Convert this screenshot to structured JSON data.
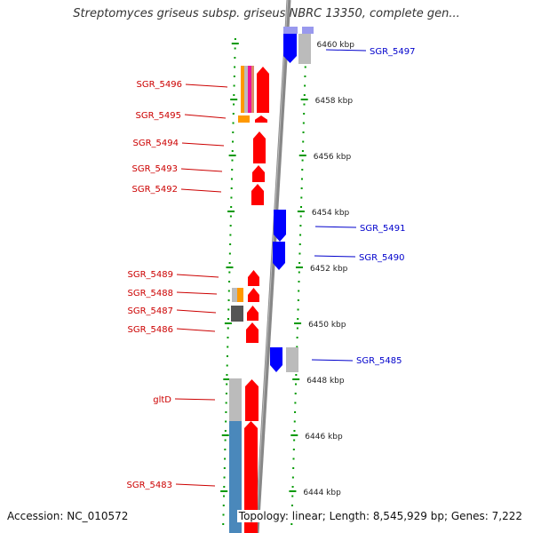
{
  "title": "Streptomyces griseus subsp. griseus NBRC 13350, complete gen...",
  "footer": {
    "accession_label": "Accession:",
    "accession": "NC_010572",
    "topology_label": "Topology:",
    "topology": "linear",
    "length_label": "Length:",
    "length": "8,545,929 bp",
    "genes_label": "Genes:",
    "genes": "7,222"
  },
  "colors": {
    "forward_strand": "#ff0000",
    "reverse_strand": "#0000ff",
    "forward_label": "#cc0000",
    "reverse_label": "#0000cc",
    "scale_ticks": "#009900",
    "backbone": "#888888",
    "gray_feature": "#bbbbbb",
    "dark_gray_feature": "#555555",
    "orange_feature": "#ff9900",
    "magenta_feature": "#ee1199",
    "steel_blue_feature": "#4a88bb",
    "lavender_feature": "#9999ee"
  },
  "scale": {
    "unit": "kbp",
    "labels": [
      "6460 kbp",
      "6458 kbp",
      "6456 kbp",
      "6454 kbp",
      "6452 kbp",
      "6450 kbp",
      "6448 kbp",
      "6446 kbp",
      "6444 kbp"
    ]
  },
  "features": {
    "forward": [
      {
        "name": "SGR_5496"
      },
      {
        "name": "SGR_5495"
      },
      {
        "name": "SGR_5494"
      },
      {
        "name": "SGR_5493"
      },
      {
        "name": "SGR_5492"
      },
      {
        "name": "SGR_5489"
      },
      {
        "name": "SGR_5488"
      },
      {
        "name": "SGR_5487"
      },
      {
        "name": "SGR_5486"
      },
      {
        "name": "gltD"
      },
      {
        "name": "SGR_5483"
      }
    ],
    "reverse": [
      {
        "name": "SGR_5497"
      },
      {
        "name": "SGR_5491"
      },
      {
        "name": "SGR_5490"
      },
      {
        "name": "SGR_5485"
      }
    ]
  }
}
